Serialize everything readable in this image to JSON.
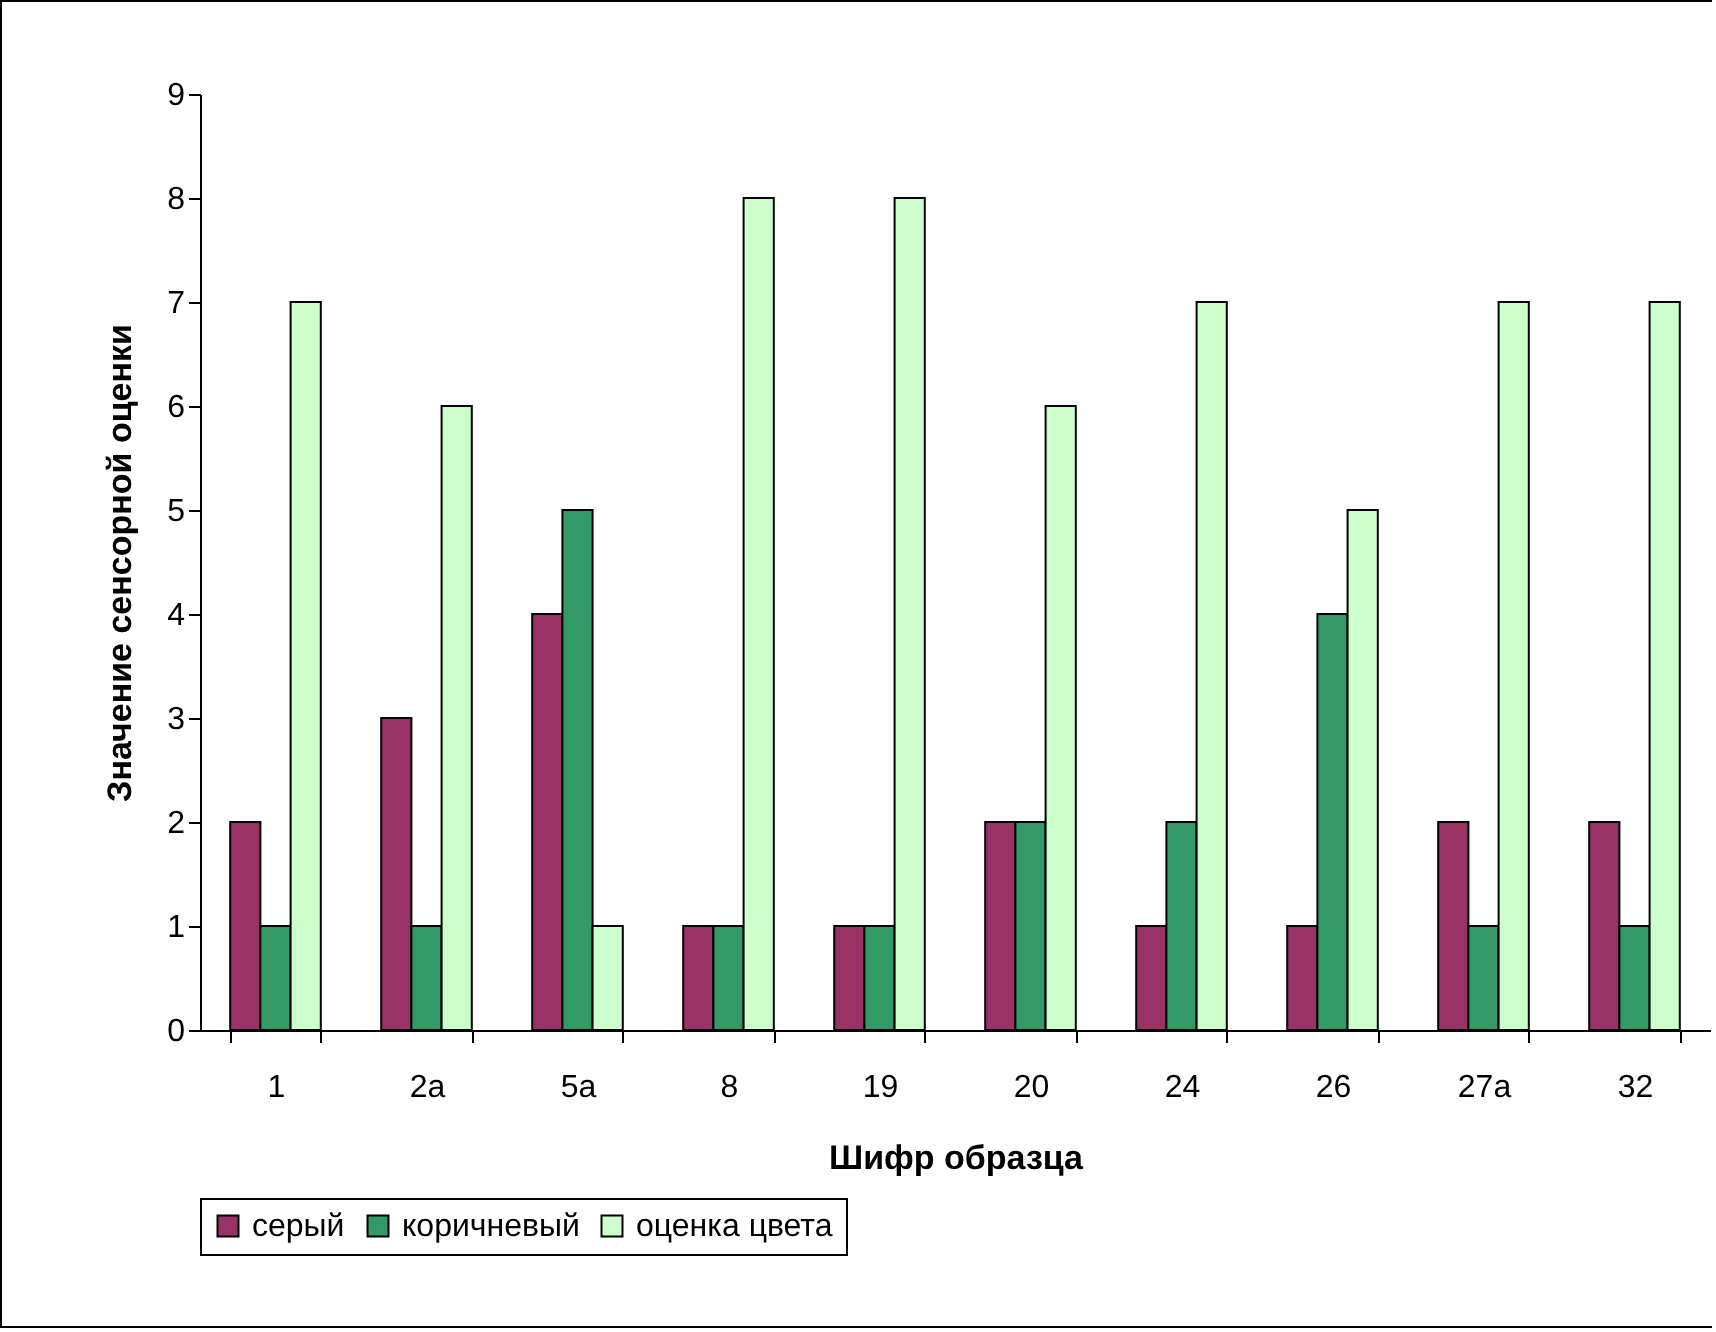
{
  "chart_data": {
    "type": "bar",
    "xlabel": "Шифр образца",
    "ylabel": "Значение сенсорной оценки",
    "categories": [
      "1",
      "2а",
      "5а",
      "8",
      "19",
      "20",
      "24",
      "26",
      "27а",
      "32"
    ],
    "series": [
      {
        "name": "серый",
        "color": "#993366",
        "values": [
          2,
          3,
          4,
          1,
          1,
          2,
          1,
          1,
          2,
          2
        ]
      },
      {
        "name": "коричневый",
        "color": "#339966",
        "values": [
          1,
          1,
          5,
          1,
          1,
          2,
          2,
          4,
          1,
          1
        ]
      },
      {
        "name": "оценка цвета",
        "color": "#ccffcc",
        "values": [
          7,
          6,
          1,
          8,
          8,
          6,
          7,
          5,
          7,
          7
        ]
      }
    ],
    "ylim": [
      0,
      9
    ],
    "yticks": [
      0,
      1,
      2,
      3,
      4,
      5,
      6,
      7,
      8,
      9
    ],
    "grid": false,
    "legend": "bottom"
  }
}
